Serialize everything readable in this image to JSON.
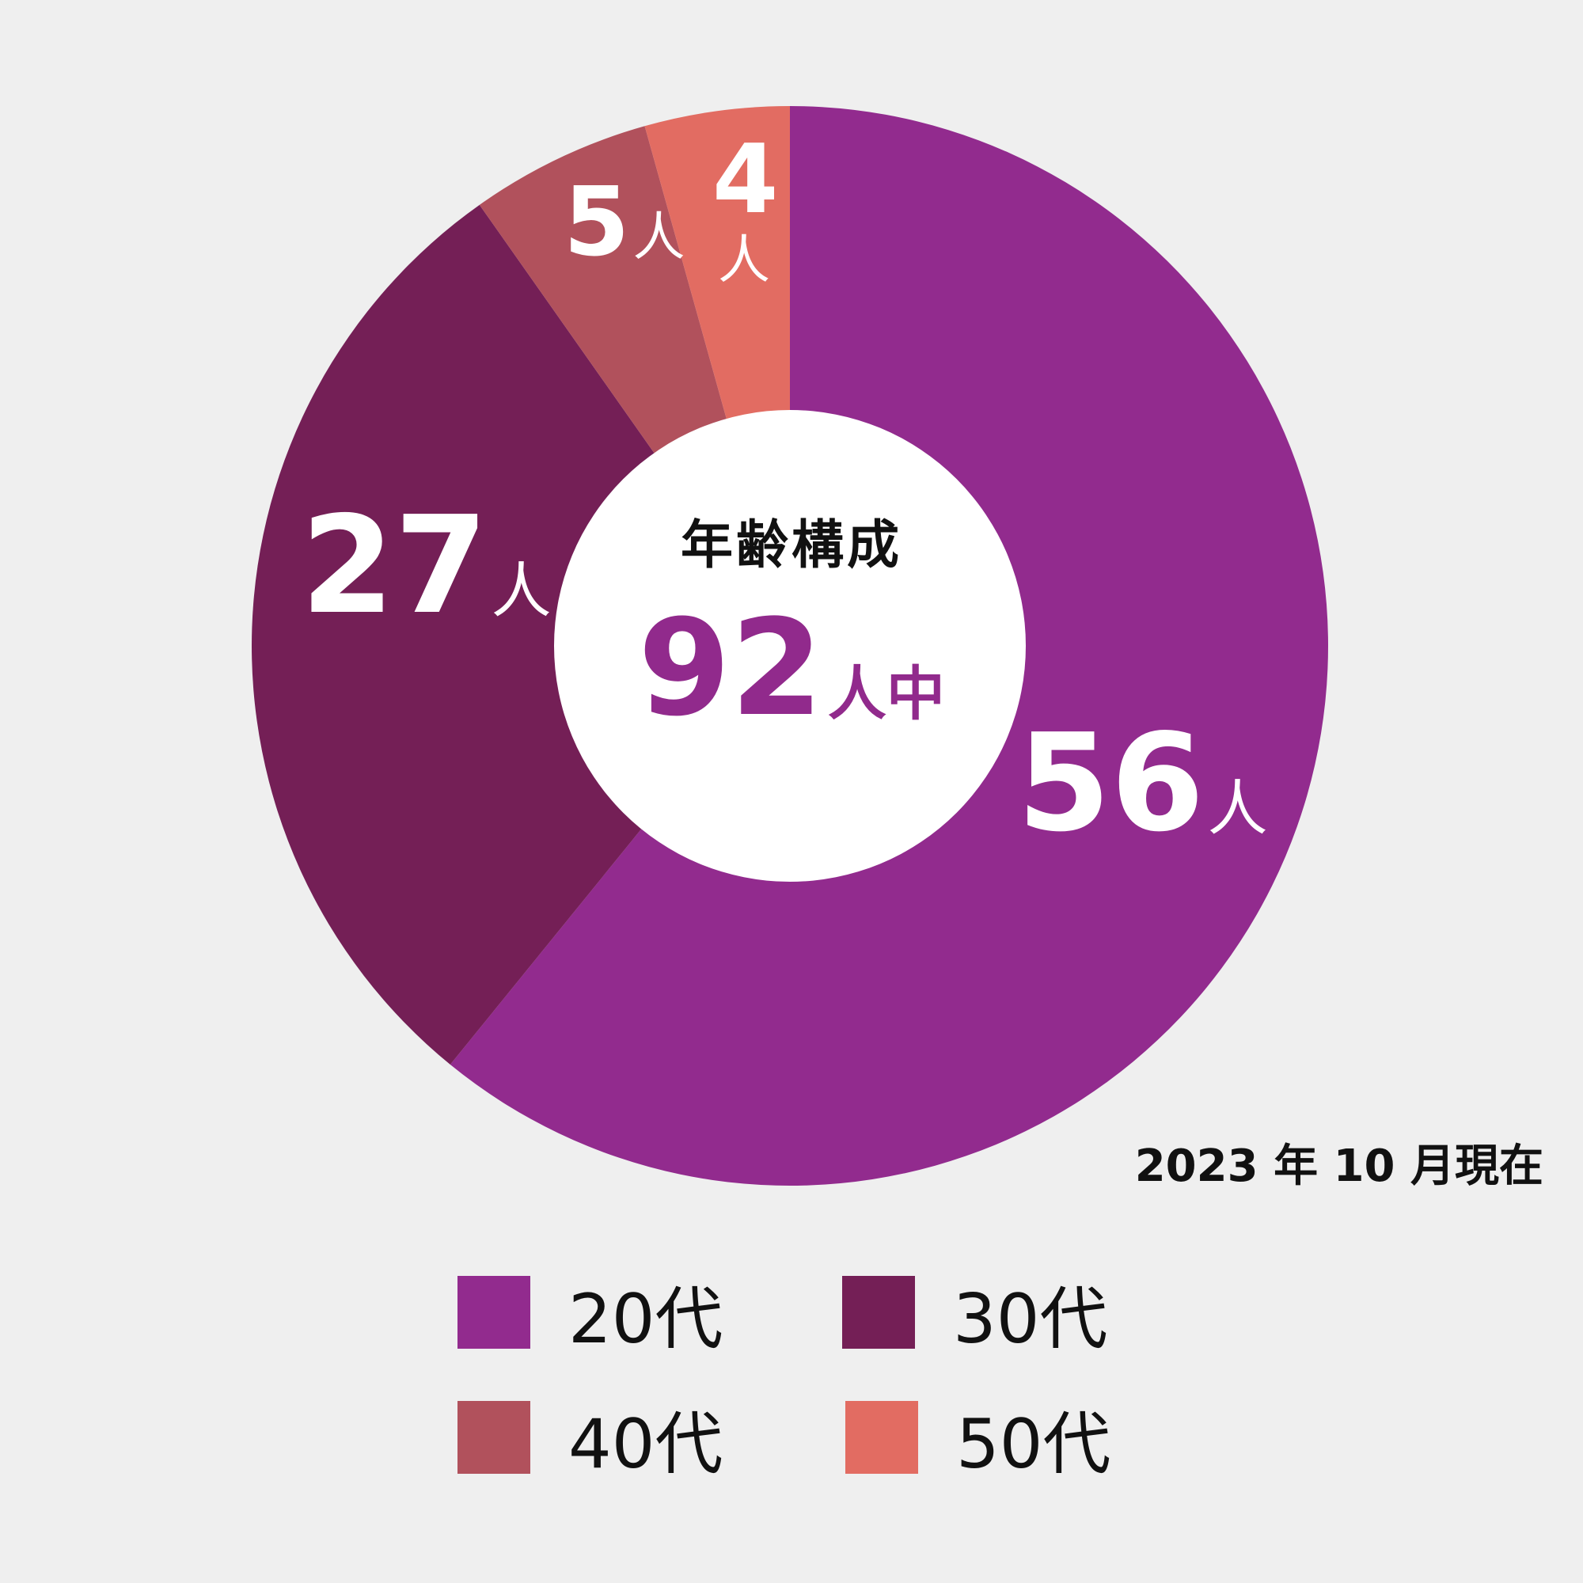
{
  "chart_data": {
    "type": "pie",
    "donut": true,
    "categories": [
      "20代",
      "30代",
      "40代",
      "50代"
    ],
    "values": [
      56,
      27,
      5,
      4
    ],
    "value_labels": [
      "56",
      "27",
      "5",
      "4"
    ],
    "unit_label": "人",
    "colors": [
      "#922b8e",
      "#741f56",
      "#b1515c",
      "#e26c62"
    ],
    "center_title": "年齢構成",
    "center_total": "92",
    "center_total_unit": "人中",
    "note": "2023 年 10 月現在",
    "legend_position": "bottom"
  }
}
